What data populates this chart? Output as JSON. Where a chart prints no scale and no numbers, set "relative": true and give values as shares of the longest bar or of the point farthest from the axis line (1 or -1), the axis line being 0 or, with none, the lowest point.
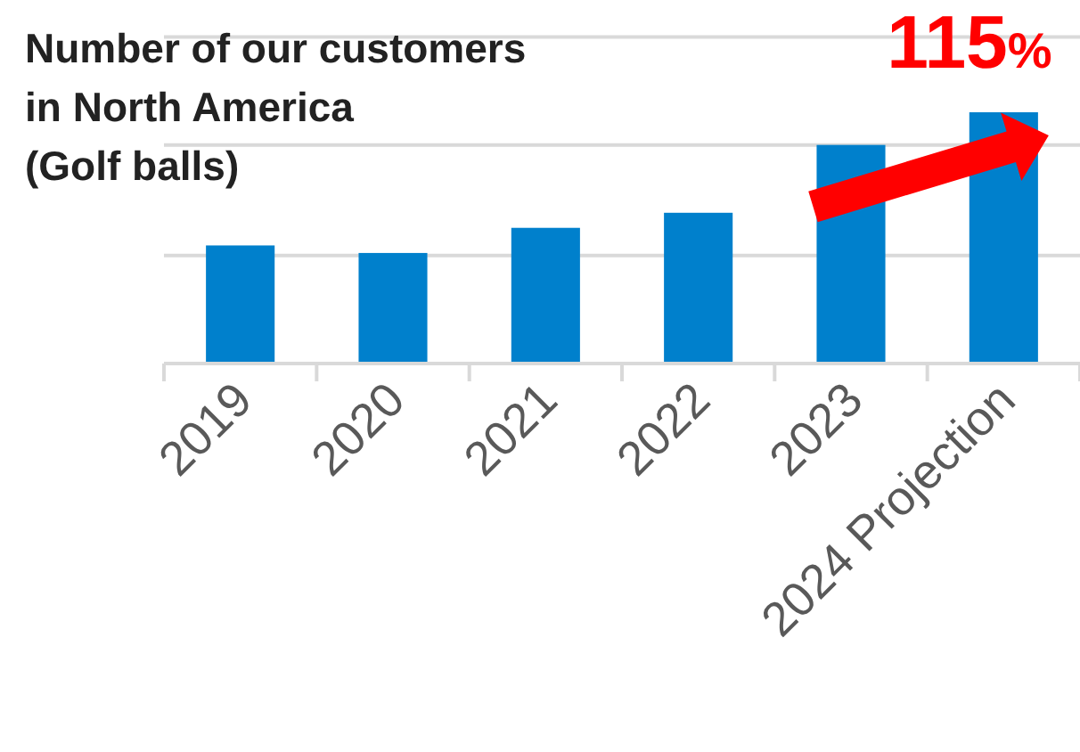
{
  "chart_data": {
    "type": "bar",
    "title": "Number of our customers\nin North America\n(Golf balls)",
    "categories": [
      "2019",
      "2020",
      "2021",
      "2022",
      "2023",
      "2024 Projection"
    ],
    "values": [
      0.47,
      0.44,
      0.54,
      0.6,
      0.87,
      1
    ],
    "color": "#0080cc",
    "relative": true,
    "ref_lines": [
      {
        "axis": "y",
        "value": 0.43,
        "color": "#d9d9d9"
      },
      {
        "axis": "y",
        "value": 0.87,
        "color": "#d9d9d9"
      },
      {
        "axis": "y",
        "value": 1.3,
        "color": "#d9d9d9"
      }
    ],
    "annotations": [
      "115%"
    ]
  }
}
